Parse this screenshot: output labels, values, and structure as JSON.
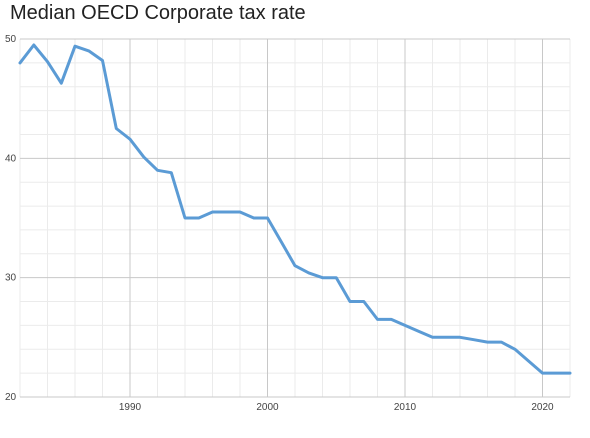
{
  "chart_data": {
    "type": "line",
    "title": "Median OECD Corporate tax rate",
    "xlabel": "",
    "ylabel": "",
    "xlim": [
      1982,
      2022
    ],
    "ylim": [
      20,
      50
    ],
    "x_ticks": [
      1990,
      2000,
      2010,
      2020
    ],
    "y_ticks": [
      20,
      30,
      40,
      50
    ],
    "grid": true,
    "series": [
      {
        "name": "",
        "color": "#5b9bd5",
        "x": [
          1982,
          1983,
          1984,
          1985,
          1986,
          1987,
          1988,
          1989,
          1990,
          1991,
          1992,
          1993,
          1994,
          1995,
          1996,
          1997,
          1998,
          1999,
          2000,
          2001,
          2002,
          2003,
          2004,
          2005,
          2006,
          2007,
          2008,
          2009,
          2010,
          2011,
          2012,
          2013,
          2014,
          2015,
          2016,
          2017,
          2018,
          2019,
          2020,
          2021,
          2022
        ],
        "y": [
          48,
          49.5,
          48.1,
          46.3,
          49.4,
          49,
          48.2,
          42.5,
          41.6,
          40.1,
          39,
          38.8,
          35,
          35,
          35.5,
          35.5,
          35.5,
          35,
          35,
          33,
          31,
          30.4,
          30,
          30,
          28,
          28,
          26.5,
          26.5,
          26,
          25.5,
          25,
          25,
          25,
          24.8,
          24.6,
          24.6,
          24,
          23,
          22,
          22,
          22
        ]
      }
    ]
  }
}
